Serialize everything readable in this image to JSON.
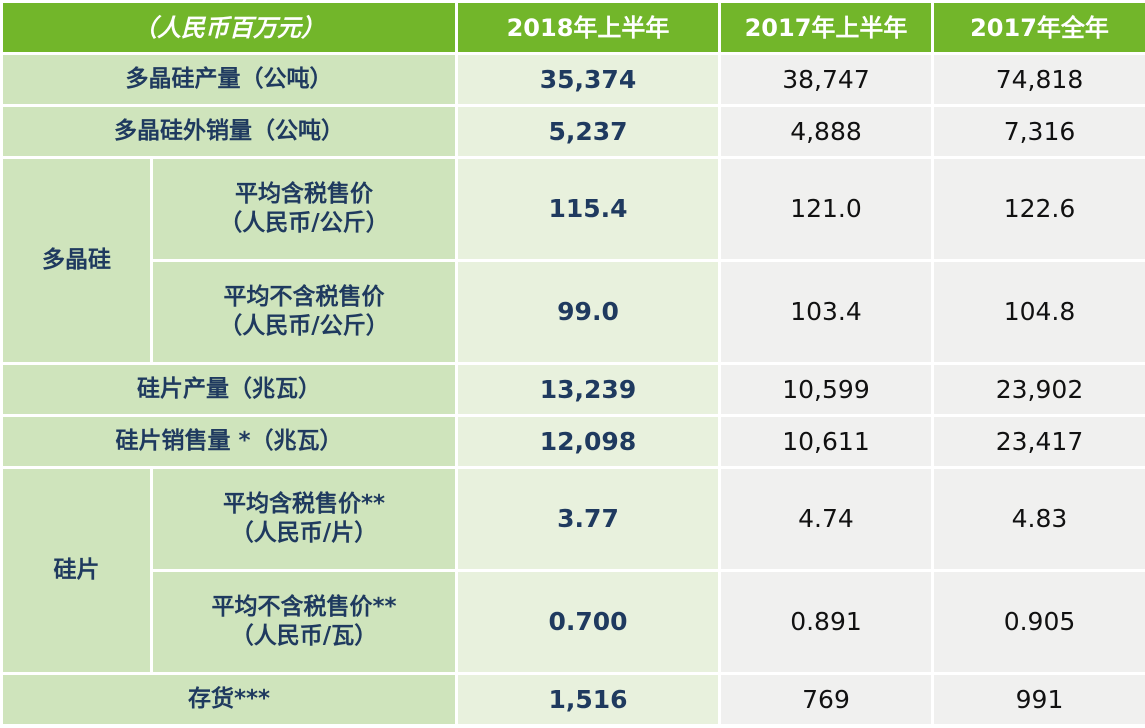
{
  "header": {
    "unit": "（人民币百万元）",
    "col1": "2018年上半年",
    "col2": "2017年上半年",
    "col3": "2017年全年"
  },
  "rows": {
    "poly_output": {
      "label": "多晶硅产量（公吨）",
      "v2018h1": "35,374",
      "v2017h1": "38,747",
      "v2017": "74,818"
    },
    "poly_external_sales": {
      "label": "多晶硅外销量（公吨）",
      "v2018h1": "5,237",
      "v2017h1": "4,888",
      "v2017": "7,316"
    },
    "poly_group": {
      "label": "多晶硅",
      "price_incl_tax": {
        "line1": "平均含税售价",
        "line2": "（人民币/公斤）",
        "v2018h1": "115.4",
        "v2017h1": "121.0",
        "v2017": "122.6"
      },
      "price_excl_tax": {
        "line1": "平均不含税售价",
        "line2": "（人民币/公斤）",
        "v2018h1": "99.0",
        "v2017h1": "103.4",
        "v2017": "104.8"
      }
    },
    "wafer_output": {
      "label": "硅片产量（兆瓦）",
      "v2018h1": "13,239",
      "v2017h1": "10,599",
      "v2017": "23,902"
    },
    "wafer_sales": {
      "label": "硅片销售量 *（兆瓦）",
      "v2018h1": "12,098",
      "v2017h1": "10,611",
      "v2017": "23,417"
    },
    "wafer_group": {
      "label": "硅片",
      "price_incl_tax": {
        "line1": "平均含税售价**",
        "line2": "（人民币/片）",
        "v2018h1": "3.77",
        "v2017h1": "4.74",
        "v2017": "4.83"
      },
      "price_excl_tax": {
        "line1": "平均不含税售价**",
        "line2": "（人民币/瓦）",
        "v2018h1": "0.700",
        "v2017h1": "0.891",
        "v2017": "0.905"
      }
    },
    "inventory": {
      "label": "存货***",
      "v2018h1": "1,516",
      "v2017h1": "769",
      "v2017": "991"
    }
  },
  "colors": {
    "header_bg": "#72b62a",
    "label_bg": "#cfe4bc",
    "col2018_bg": "#e8f1dd",
    "other_bg": "#f0f0ef",
    "label_text": "#1f3a5f"
  }
}
